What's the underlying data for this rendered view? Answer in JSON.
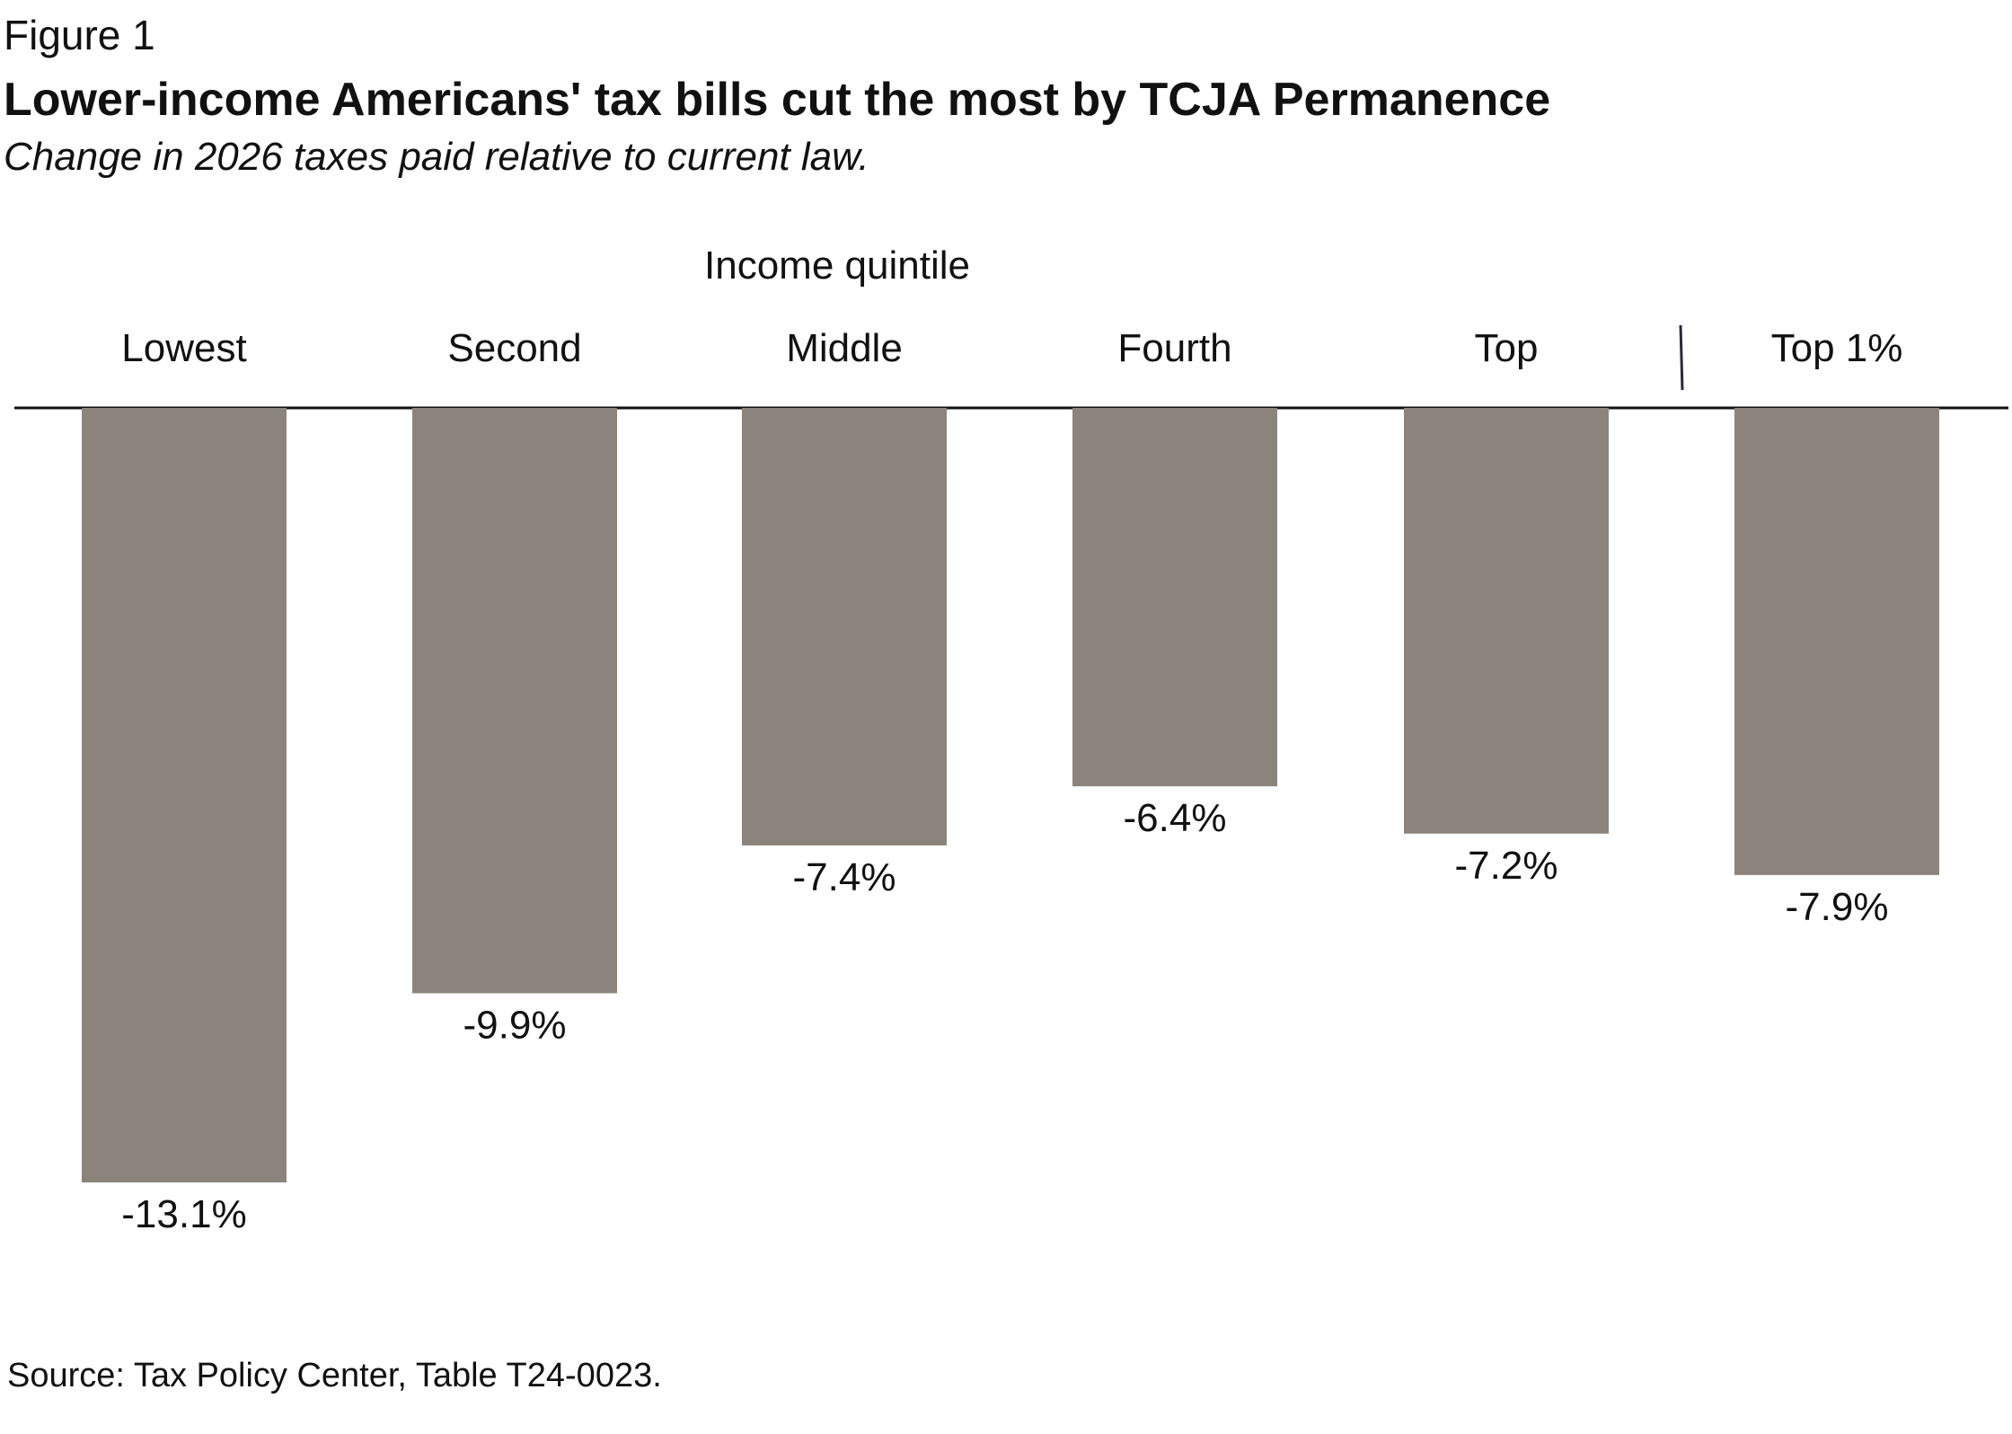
{
  "figure_label": "Figure 1",
  "title": "Lower-income Americans' tax bills cut the most by TCJA Permanence",
  "subtitle": "Change in 2026 taxes paid relative to current law.",
  "source": "Source: Tax Policy Center, Table T24-0023.",
  "colors": {
    "bar": "#8b847c",
    "axis": "#111111",
    "separator": "#2a2a3a",
    "text": "#111111"
  },
  "chart_data": {
    "type": "bar",
    "group_label": "Income quintile",
    "categories": [
      "Lowest",
      "Second",
      "Middle",
      "Fourth",
      "Top",
      "Top 1%"
    ],
    "values": [
      -13.1,
      -9.9,
      -7.4,
      -6.4,
      -7.2,
      -7.9
    ],
    "value_labels": [
      "-13.1%",
      "-9.9%",
      "-7.4%",
      "-6.4%",
      "-7.2%",
      "-7.9%"
    ],
    "ylim": [
      -13.1,
      0
    ],
    "grid": false,
    "legend": "none",
    "separator_before_category": "Top 1%"
  }
}
